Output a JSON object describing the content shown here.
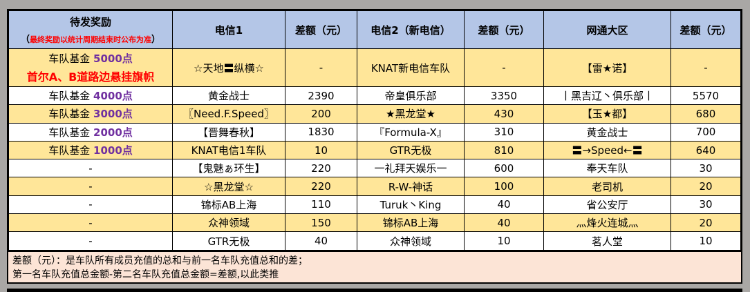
{
  "colors": {
    "header_bg": "#b4c6e7",
    "highlight_row": "#ffe699",
    "footer_bg": "#fce4d6",
    "points": "#7030a0",
    "notice": "#ff0000"
  },
  "header": {
    "reward": "待发奖励",
    "reward_note_open": "（",
    "reward_note": "最终奖励以统计周期结束时公布为准",
    "reward_note_close": "）",
    "col1": "电信1",
    "col2": "差额（元）",
    "col3": "电信2（新电信）",
    "col4": "差额（元）",
    "col5": "网通大区",
    "col6": "差额（元）"
  },
  "rows": [
    {
      "reward_prefix": "车队基金 ",
      "reward_points": "5000点",
      "reward_extra": "首尔A、B道路边悬挂旗帜",
      "t1": "☆天地〓纵横☆",
      "d1": "-",
      "t2": "KNAT新电信车队",
      "d2": "-",
      "t3": "【雷★诺】",
      "d3": "-"
    },
    {
      "reward_prefix": "车队基金 ",
      "reward_points": "4000点",
      "t1": "黄金战士",
      "d1": "2390",
      "t2": "帝皇俱乐部",
      "d2": "3350",
      "t3": "丨黑吉辽丶俱乐部丨",
      "d3": "5570"
    },
    {
      "reward_prefix": "车队基金 ",
      "reward_points": "3000点",
      "t1": "〖Need.F.Speed〗",
      "d1": "200",
      "t2": "★黑龙堂★",
      "d2": "430",
      "t3": "【玉★都】",
      "d3": "680"
    },
    {
      "reward_prefix": "车队基金 ",
      "reward_points": "2000点",
      "t1": "【晋舞春秋】",
      "d1": "1830",
      "t2": "『Formula-X』",
      "d2": "310",
      "t3": "黄金战士",
      "d3": "700"
    },
    {
      "reward_prefix": "车队基金 ",
      "reward_points": "1000点",
      "t1": "KNAT电信1车队",
      "d1": "10",
      "t2": "GTR无极",
      "d2": "810",
      "t3": "〓→Speed←〓",
      "d3": "640"
    },
    {
      "reward": "-",
      "t1": "【鬼魅ぁ环生】",
      "d1": "220",
      "t2": "一礼拜天娱乐一",
      "d2": "600",
      "t3": "奉天车队",
      "d3": "30"
    },
    {
      "reward": "-",
      "t1": "☆黑龙堂☆",
      "d1": "220",
      "t2": "R-W-神话",
      "d2": "100",
      "t3": "老司机",
      "d3": "20"
    },
    {
      "reward": "-",
      "t1": "锦标AB上海",
      "d1": "110",
      "t2": "Turuk丶King",
      "d2": "40",
      "t3": "省公安厅",
      "d3": "30"
    },
    {
      "reward": "-",
      "t1": "众神领域",
      "d1": "150",
      "t2": "锦标AB上海",
      "d2": "40",
      "t3": "灬烽火连城灬",
      "d3": "20"
    },
    {
      "reward": "-",
      "t1": "GTR无极",
      "d1": "40",
      "t2": "众神领域",
      "d2": "10",
      "t3": "茗人堂",
      "d3": "10"
    }
  ],
  "footer": {
    "line1": "差额（元）：是车队所有成员充值的总和与前一名车队充值总和的差；",
    "line2": "第一名车队充值总金额-第二名车队充值总金额=差额,以此类推"
  }
}
